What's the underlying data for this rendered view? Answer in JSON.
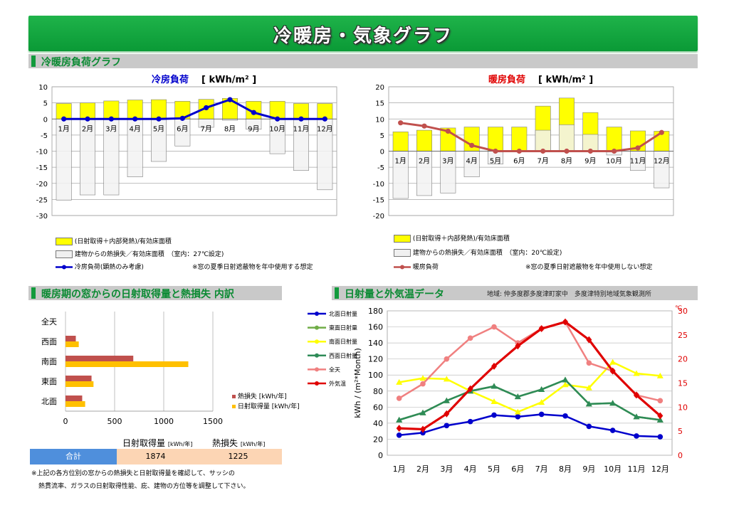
{
  "page_title": "冷暖房・気象グラフ",
  "sections": {
    "load": "冷暖房負荷グラフ",
    "window": "暖房期の窓からの日射取得量と熱損失 内訳",
    "climate": "日射量と外気温データ",
    "location": "地域: 仲多度郡多度津町家中　多度津特別地域気象観測所"
  },
  "colors": {
    "bar_yellow": "#ffff00",
    "bar_gray": "#f0f0f0",
    "cooling_line": "#0000cc",
    "heating_line": "#c0504d",
    "loss_bar": "#c0504d",
    "gain_bar": "#ffc000",
    "header_green": "#129a3c",
    "total_blue": "#4f8fdc",
    "total_peach": "#fcd5b4"
  },
  "legends": {
    "cooling": {
      "gain": "(日射取得＋内部発熱)/有効床面積",
      "loss": "建物からの熱損失／有効床面積　（室内：27℃設定)",
      "line": "冷房負荷(顕熱のみ考慮)",
      "note": "※窓の夏季日射遮蔽物を年中使用する想定"
    },
    "heating": {
      "gain": "(日射取得＋内部発熱)/有効床面積",
      "loss": "建物からの熱損失／有効床面積　（室内：20℃設定)",
      "line": "暖房負荷",
      "note": "※窓の夏季日射遮蔽物を年中使用しない想定"
    }
  },
  "summary": {
    "total_label": "合計",
    "gain_header": "日射取得量",
    "gain_unit": "[kWh/年]",
    "loss_header": "熱損失",
    "loss_unit": "[kWh/年]",
    "gain_value": "1874",
    "loss_value": "1225"
  },
  "notes": {
    "line1": "※上記の各方位別の窓からの熱損失と日射取得量を確認して、サッシの",
    "line2": "熱貫流率、ガラスの日射取得性能、庇、建物の方位等を調整して下さい。"
  },
  "chart_data": [
    {
      "type": "bar",
      "title": "冷房負荷",
      "unit": "[ kWh/m² ]",
      "categories": [
        "1月",
        "2月",
        "3月",
        "4月",
        "5月",
        "6月",
        "7月",
        "8月",
        "9月",
        "10月",
        "11月",
        "12月"
      ],
      "ylim": [
        -30,
        10
      ],
      "yticks": [
        10,
        5,
        0,
        -5,
        -10,
        -15,
        -20,
        -25,
        -30
      ],
      "series": [
        {
          "name": "(日射取得＋内部発熱)/有効床面積",
          "kind": "bar",
          "values": [
            4.8,
            5.0,
            5.6,
            5.9,
            6.0,
            5.5,
            6.1,
            6.4,
            5.5,
            5.5,
            4.8,
            4.8
          ]
        },
        {
          "name": "建物からの熱損失／有効床面積　（室内：27℃設定)",
          "kind": "bar",
          "values": [
            -25.2,
            -23.6,
            -23.6,
            -18.0,
            -13.2,
            -8.4,
            -2.6,
            -0.4,
            -3.2,
            -10.8,
            -16.0,
            -22.0
          ]
        },
        {
          "name": "冷房負荷(顕熱のみ考慮)",
          "kind": "line",
          "values": [
            0,
            0,
            0,
            0,
            0,
            0.2,
            3.5,
            6.0,
            2.0,
            0,
            0,
            0
          ]
        }
      ]
    },
    {
      "type": "bar",
      "title": "暖房負荷",
      "unit": "[ kWh/m² ]",
      "categories": [
        "1月",
        "2月",
        "3月",
        "4月",
        "5月",
        "6月",
        "7月",
        "8月",
        "9月",
        "10月",
        "11月",
        "12月"
      ],
      "ylim": [
        -20,
        20
      ],
      "yticks": [
        20,
        15,
        10,
        5,
        0,
        -5,
        -10,
        -15,
        -20
      ],
      "series": [
        {
          "name": "(日射取得＋内部発熱)/有効床面積",
          "kind": "bar",
          "values": [
            6.0,
            6.5,
            7.2,
            7.5,
            7.5,
            7.5,
            14.0,
            16.5,
            12.0,
            7.5,
            6.3,
            6.2
          ]
        },
        {
          "name": "建物からの熱損失／有効床面積　（室内：20℃設定)",
          "kind": "bar",
          "values": [
            -14.7,
            -13.8,
            -13.0,
            -8.0,
            -4.0,
            0,
            6.5,
            8.2,
            5.2,
            -1.2,
            -6.0,
            -11.4
          ]
        },
        {
          "name": "暖房負荷",
          "kind": "line",
          "values": [
            8.8,
            7.8,
            6.2,
            1.8,
            0,
            0,
            0,
            0,
            0,
            0,
            1.0,
            5.8
          ]
        }
      ]
    },
    {
      "type": "bar",
      "orientation": "horizontal",
      "categories": [
        "全天",
        "西面",
        "南面",
        "東面",
        "北面"
      ],
      "xlim": [
        0,
        1500
      ],
      "xticks": [
        0,
        500,
        1000,
        1500
      ],
      "series": [
        {
          "name": "熱損失 [kWh/年]",
          "values": [
            0,
            105,
            690,
            265,
            170
          ]
        },
        {
          "name": "日射取得量 [kWh/年]",
          "values": [
            0,
            135,
            1250,
            285,
            200
          ]
        }
      ]
    },
    {
      "type": "line",
      "categories": [
        "1月",
        "2月",
        "3月",
        "4月",
        "5月",
        "6月",
        "7月",
        "8月",
        "9月",
        "10月",
        "11月",
        "12月"
      ],
      "ylabel": "kWh / (m²*Month)",
      "ylim": [
        0,
        180
      ],
      "yticks": [
        0,
        20,
        40,
        60,
        80,
        100,
        120,
        140,
        160,
        180
      ],
      "y2label": "℃",
      "y2lim": [
        0,
        30
      ],
      "y2ticks": [
        0,
        5,
        10,
        15,
        20,
        25,
        30
      ],
      "series": [
        {
          "name": "北面日射量",
          "axis": "left",
          "values": [
            25,
            28,
            37,
            42,
            50,
            48,
            51,
            49,
            36,
            31,
            24,
            23
          ]
        },
        {
          "name": "東面日射量",
          "axis": "left",
          "values": [
            44,
            53,
            68,
            80,
            86,
            73,
            82,
            94,
            64,
            65,
            48,
            44
          ]
        },
        {
          "name": "南面日射量",
          "axis": "left",
          "values": [
            91,
            96,
            95,
            80,
            67,
            54,
            66,
            88,
            84,
            116,
            102,
            99
          ]
        },
        {
          "name": "西面日射量",
          "axis": "left",
          "values": [
            44,
            53,
            68,
            80,
            86,
            73,
            82,
            94,
            64,
            65,
            48,
            44
          ]
        },
        {
          "name": "全天",
          "axis": "left",
          "values": [
            71,
            89,
            120,
            146,
            160,
            140,
            158,
            166,
            115,
            105,
            75,
            68
          ]
        },
        {
          "name": "外気温",
          "axis": "right",
          "values": [
            5.6,
            5.4,
            8.6,
            13.8,
            18.5,
            22.7,
            26.3,
            27.7,
            24.0,
            17.5,
            12.5,
            8.2
          ]
        }
      ],
      "series_colors": [
        "#0000cc",
        "#70ad47",
        "#ffff00",
        "#2e8b57",
        "#f08080",
        "#e00000"
      ]
    }
  ]
}
